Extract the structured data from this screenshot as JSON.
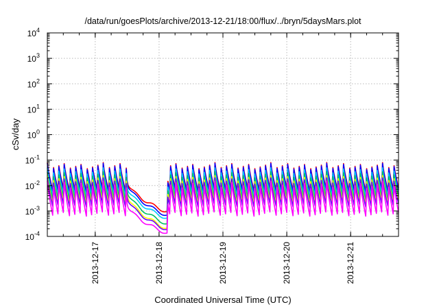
{
  "chart_data": {
    "type": "line",
    "title": "/data/run/goesPlots/archive/2013-12-21/18:00/flux/../bryn/5daysMars.plot",
    "xlabel": "Coordinated Universal Time (UTC)",
    "ylabel": "cSv/day",
    "y_scale": "log",
    "ylim": [
      0.0001,
      10000
    ],
    "y_ticks": [
      {
        "base": "10",
        "exp": "4"
      },
      {
        "base": "10",
        "exp": "3"
      },
      {
        "base": "10",
        "exp": "2"
      },
      {
        "base": "10",
        "exp": "1"
      },
      {
        "base": "10",
        "exp": "0"
      },
      {
        "base": "10",
        "exp": "-1"
      },
      {
        "base": "10",
        "exp": "-2"
      },
      {
        "base": "10",
        "exp": "-3"
      },
      {
        "base": "10",
        "exp": "-4"
      }
    ],
    "xlim": [
      "2013-12-16 06:00",
      "2013-12-21 18:00"
    ],
    "x_tick_labels": [
      "2013-12-17",
      "2013-12-18",
      "2013-12-19",
      "2013-12-20",
      "2013-12-21"
    ],
    "grid": true,
    "legend": "none",
    "pulse_period_hours": 2.1,
    "dip_window": [
      "2013-12-17 12:00",
      "2013-12-18 03:00"
    ],
    "series": [
      {
        "color": "#ff0000",
        "peak": 0.08,
        "trough": 0.006,
        "dip_min": 0.0009
      },
      {
        "color": "#0000ff",
        "peak": 0.075,
        "trough": 0.005,
        "dip_min": 0.00065
      },
      {
        "color": "#00ccff",
        "peak": 0.05,
        "trough": 0.0035,
        "dip_min": 0.0005
      },
      {
        "color": "#00c060",
        "peak": 0.035,
        "trough": 0.0025,
        "dip_min": 0.0003
      },
      {
        "color": "#ffff00",
        "peak": 0.025,
        "trough": 0.0018,
        "dip_min": 0.0002
      },
      {
        "color": "#6a00ff",
        "peak": 0.02,
        "trough": 0.0014,
        "dip_min": 0.00018
      },
      {
        "color": "#ff00ff",
        "peak": 0.015,
        "trough": 0.0006,
        "dip_min": 0.00013
      }
    ]
  }
}
